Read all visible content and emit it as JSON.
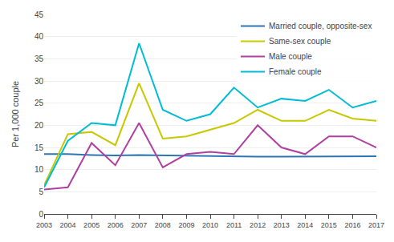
{
  "chart_data": {
    "type": "line",
    "ylabel": "Per 1,000 couple",
    "x": [
      2003,
      2004,
      2005,
      2006,
      2007,
      2008,
      2009,
      2010,
      2011,
      2012,
      2013,
      2014,
      2015,
      2016,
      2017
    ],
    "series": [
      {
        "name": "Married couple, opposite-sex",
        "color": "#2e75b6",
        "values": [
          13.5,
          13.5,
          13.3,
          13.2,
          13.3,
          13.2,
          13.1,
          13.0,
          13.0,
          12.9,
          12.9,
          12.9,
          13.0,
          13.0,
          13.0
        ]
      },
      {
        "name": "Same-sex couple",
        "color": "#c8c800",
        "values": [
          6.5,
          18.0,
          18.5,
          15.5,
          29.5,
          17.0,
          17.5,
          19.0,
          20.5,
          23.5,
          21.0,
          21.0,
          23.5,
          21.5,
          21.0
        ]
      },
      {
        "name": "Male couple",
        "color": "#b040a0",
        "values": [
          5.5,
          6.0,
          16.0,
          11.0,
          20.5,
          10.5,
          13.5,
          14.0,
          13.5,
          20.0,
          15.0,
          13.5,
          17.5,
          17.5,
          15.0
        ]
      },
      {
        "name": "Female couple",
        "color": "#00bcd4",
        "values": [
          6.0,
          16.5,
          20.5,
          20.0,
          38.5,
          23.5,
          21.0,
          22.5,
          28.5,
          24.0,
          26.0,
          25.5,
          28.0,
          24.0,
          25.5
        ]
      }
    ],
    "xlim": [
      2003,
      2017
    ],
    "xticks": [
      2003,
      2004,
      2005,
      2006,
      2007,
      2008,
      2009,
      2010,
      2011,
      2012,
      2013,
      2014,
      2015,
      2016,
      2017
    ],
    "ylim": [
      0,
      45
    ],
    "yticks": [
      0,
      5,
      10,
      15,
      20,
      25,
      30,
      35,
      40,
      45
    ],
    "grid": true,
    "legend": "upper right"
  }
}
